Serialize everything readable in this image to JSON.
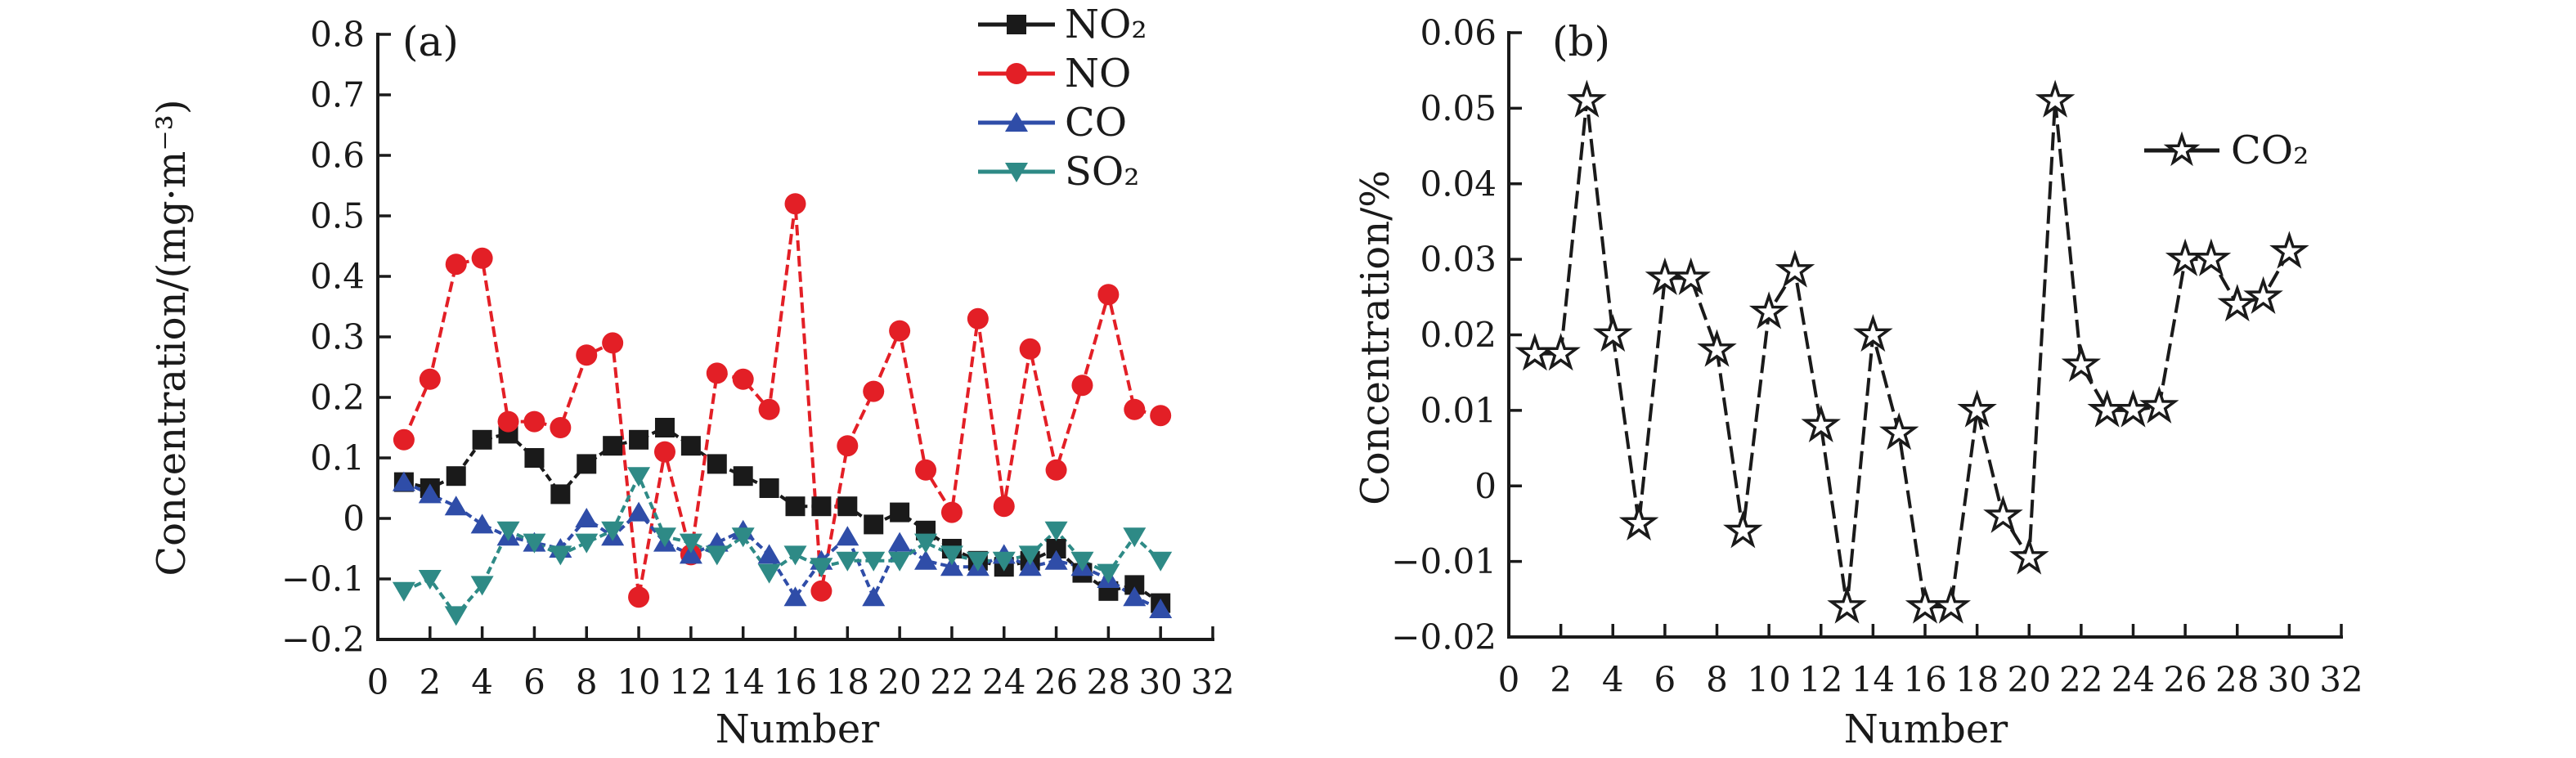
{
  "chart_data": [
    {
      "id": "a",
      "type": "line",
      "panel_label": "(a)",
      "xlabel": "Number",
      "ylabel": "Concentration/(mg·m⁻³)",
      "xlim": [
        0,
        32
      ],
      "ylim": [
        -0.2,
        0.8
      ],
      "grid": false,
      "legend_position": "top-right-of-plot",
      "xtick_labels": [
        "0",
        "2",
        "4",
        "6",
        "8",
        "10",
        "12",
        "14",
        "16",
        "18",
        "20",
        "22",
        "24",
        "26",
        "28",
        "30",
        "32"
      ],
      "ytick_labels": [
        "0.8",
        "0.7",
        "0.6",
        "0.5",
        "0.4",
        "0.3",
        "0.2",
        "0.1",
        "0",
        "−0.1",
        "−0.2"
      ],
      "x": [
        1,
        2,
        3,
        4,
        5,
        6,
        7,
        8,
        9,
        10,
        11,
        12,
        13,
        14,
        15,
        16,
        17,
        18,
        19,
        20,
        21,
        22,
        23,
        24,
        25,
        26,
        27,
        28,
        29,
        30
      ],
      "series": [
        {
          "name": "NO₂",
          "marker": "square",
          "color": "#1a1a1a",
          "values": [
            0.06,
            0.05,
            0.07,
            0.13,
            0.14,
            0.1,
            0.04,
            0.09,
            0.12,
            0.13,
            0.15,
            0.12,
            0.09,
            0.07,
            0.05,
            0.02,
            0.02,
            0.02,
            -0.01,
            0.01,
            -0.02,
            -0.05,
            -0.07,
            -0.08,
            -0.07,
            -0.05,
            -0.09,
            -0.12,
            -0.11,
            -0.14
          ]
        },
        {
          "name": "NO",
          "marker": "circle",
          "color": "#e31f26",
          "values": [
            0.13,
            0.23,
            0.42,
            0.43,
            0.16,
            0.16,
            0.15,
            0.27,
            0.29,
            -0.13,
            0.11,
            -0.06,
            0.24,
            0.23,
            0.18,
            0.52,
            -0.12,
            0.12,
            0.21,
            0.31,
            0.08,
            0.01,
            0.33,
            0.02,
            0.28,
            0.08,
            0.22,
            0.37,
            0.18,
            0.17
          ]
        },
        {
          "name": "CO",
          "marker": "triangle-up",
          "color": "#2f4da8",
          "values": [
            0.06,
            0.04,
            0.02,
            -0.01,
            -0.03,
            -0.04,
            -0.05,
            0.0,
            -0.03,
            0.01,
            -0.04,
            -0.06,
            -0.04,
            -0.02,
            -0.06,
            -0.13,
            -0.07,
            -0.03,
            -0.13,
            -0.04,
            -0.07,
            -0.08,
            -0.08,
            -0.06,
            -0.08,
            -0.07,
            -0.08,
            -0.1,
            -0.13,
            -0.15
          ]
        },
        {
          "name": "SO₂",
          "marker": "triangle-down",
          "color": "#2e8a86",
          "values": [
            -0.12,
            -0.1,
            -0.16,
            -0.11,
            -0.02,
            -0.04,
            -0.06,
            -0.04,
            -0.02,
            0.07,
            -0.03,
            -0.04,
            -0.06,
            -0.03,
            -0.09,
            -0.06,
            -0.08,
            -0.07,
            -0.07,
            -0.07,
            -0.04,
            -0.06,
            -0.07,
            -0.07,
            -0.06,
            -0.02,
            -0.07,
            -0.09,
            -0.03,
            -0.07
          ]
        }
      ]
    },
    {
      "id": "b",
      "type": "line",
      "panel_label": "(b)",
      "xlabel": "Number",
      "ylabel": "Concentration/%",
      "xlim": [
        0,
        32
      ],
      "ylim": [
        -0.02,
        0.06
      ],
      "grid": false,
      "legend_position": "inside-right",
      "xtick_labels": [
        "0",
        "2",
        "4",
        "6",
        "8",
        "10",
        "12",
        "14",
        "16",
        "18",
        "20",
        "22",
        "24",
        "26",
        "28",
        "30",
        "32"
      ],
      "ytick_labels": [
        "0.06",
        "0.05",
        "0.04",
        "0.03",
        "0.02",
        "0.01",
        "0",
        "−0.01",
        "−0.02"
      ],
      "x": [
        1,
        2,
        3,
        4,
        5,
        6,
        7,
        8,
        9,
        10,
        11,
        12,
        13,
        14,
        15,
        16,
        17,
        18,
        19,
        20,
        21,
        22,
        23,
        24,
        25,
        26,
        27,
        28,
        29,
        30
      ],
      "series": [
        {
          "name": "CO₂",
          "marker": "star-open",
          "color": "#1a1a1a",
          "values": [
            0.0175,
            0.0175,
            0.051,
            0.02,
            -0.005,
            0.0275,
            0.0275,
            0.018,
            -0.006,
            0.023,
            0.0285,
            0.008,
            -0.016,
            0.02,
            0.007,
            -0.016,
            -0.016,
            0.01,
            -0.004,
            -0.0095,
            0.051,
            0.016,
            0.01,
            0.01,
            0.0105,
            0.03,
            0.03,
            0.024,
            0.025,
            0.031
          ]
        }
      ]
    }
  ]
}
